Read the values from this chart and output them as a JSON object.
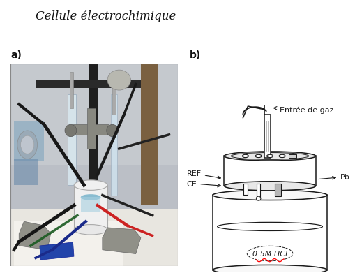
{
  "title": "Cellule électrochimique",
  "label_a": "a)",
  "label_b": "b)",
  "title_fontsize": 12,
  "label_fontsize": 10,
  "bg_color": "#ffffff",
  "diagram_color": "#1a1a1a",
  "annotations": {
    "entree_de_gaz": "Entrée de gaz",
    "ref": "REF",
    "ce": "CE",
    "pb": "Pb",
    "solution": "0.5M HCl"
  },
  "font_sizes": {
    "annotation": 7.5
  },
  "photo": {
    "bg_top": "#c8cdd4",
    "bg_mid": "#b8bfc8",
    "bg_bottom_left": "#e8e8e0",
    "bench_color": "#e0ddd5",
    "paper_color": "#f2f0eb",
    "rod_color": "#282828",
    "clamp_color": "#7a7870",
    "tube_color": "#ccdce8",
    "cell_white": "#f0f0f0",
    "solution_blue": "#70b8cc",
    "cable_dark": "#1a1a1a",
    "cable_red": "#cc2222",
    "cable_blue": "#1a3a8a",
    "cable_green": "#1a6a2a"
  }
}
